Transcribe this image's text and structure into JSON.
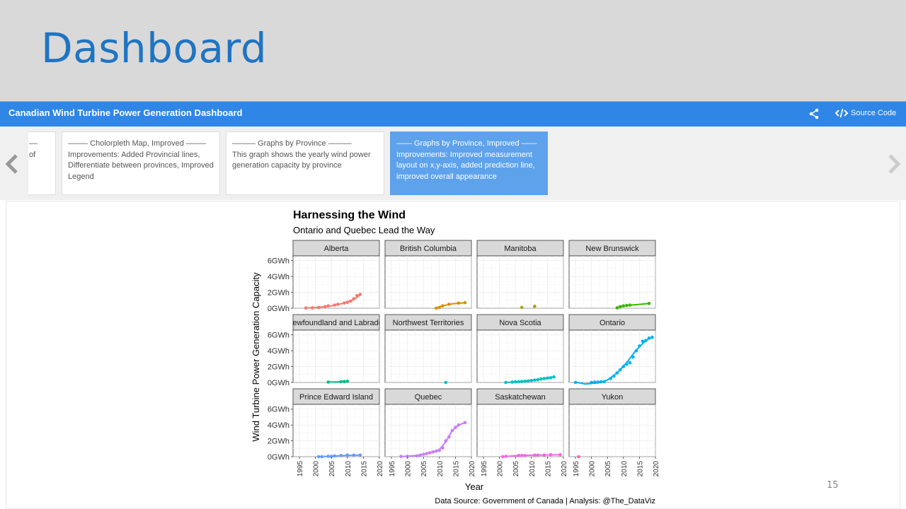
{
  "slide": {
    "title": "Dashboard",
    "page_number": "15"
  },
  "navbar": {
    "title": "Canadian Wind Turbine Power Generation Dashboard",
    "source_code_label": "Source Code",
    "share_icon": "share-icon",
    "code_icon": "code-icon"
  },
  "storyboard": {
    "cards": [
      {
        "title": "––",
        "text": "of"
      },
      {
        "title": "——– Cholorpleth Map, Improved ——–",
        "text": "Improvements: Added Provincial lines, Differentiate between provinces, Improved Legend"
      },
      {
        "title": "——— Graphs by Province ———",
        "text": "This graph shows the yearly wind power generation capacity by province"
      },
      {
        "title": "—— Graphs by Province, Improved ——",
        "text": "Improvements: Improved measurement layout on x,y-axis, added prediction line, improved overall appearance"
      }
    ]
  },
  "chart_data": {
    "type": "scatter",
    "title": "Harnessing the Wind",
    "subtitle": "Ontario and Quebec Lead the Way",
    "xlabel": "Year",
    "ylabel": "Wind Turbine Power Generation Capacity",
    "caption": "Data Source: Government of Canada | Analysis: @The_DataViz",
    "xlim": [
      1993,
      2020
    ],
    "ylim": [
      0,
      6.6
    ],
    "x_ticks": [
      "1995",
      "2000",
      "2005",
      "2010",
      "2015",
      "2020"
    ],
    "y_ticks": [
      "0GWh",
      "2GWh",
      "4GWh",
      "6GWh"
    ],
    "y_tick_values": [
      0,
      2,
      4,
      6
    ],
    "x_tick_values": [
      1995,
      2000,
      2005,
      2010,
      2015,
      2020
    ],
    "panels": [
      {
        "name": "Alberta",
        "color": "#f8766d",
        "x": [
          1997,
          1999,
          2001,
          2003,
          2004,
          2006,
          2007,
          2009,
          2010,
          2011,
          2012,
          2013,
          2014
        ],
        "y": [
          0.03,
          0.05,
          0.1,
          0.2,
          0.3,
          0.4,
          0.5,
          0.65,
          0.75,
          0.9,
          1.2,
          1.6,
          1.75
        ],
        "fit": [
          [
            1997,
            0.02
          ],
          [
            2001,
            0.1
          ],
          [
            2005,
            0.3
          ],
          [
            2009,
            0.65
          ],
          [
            2012,
            1.1
          ],
          [
            2014,
            1.7
          ]
        ]
      },
      {
        "name": "British Columbia",
        "color": "#d89000",
        "x": [
          2009,
          2010,
          2011,
          2013,
          2016,
          2018
        ],
        "y": [
          0.0,
          0.1,
          0.3,
          0.5,
          0.65,
          0.7
        ],
        "fit": [
          [
            2009,
            0.05
          ],
          [
            2011,
            0.3
          ],
          [
            2014,
            0.55
          ],
          [
            2018,
            0.7
          ]
        ]
      },
      {
        "name": "Manitoba",
        "color": "#a3a500",
        "x": [
          2007,
          2011
        ],
        "y": [
          0.1,
          0.25
        ],
        "fit": []
      },
      {
        "name": "New Brunswick",
        "color": "#39b600",
        "x": [
          2008,
          2009,
          2010,
          2011,
          2012,
          2018
        ],
        "y": [
          0.05,
          0.2,
          0.3,
          0.35,
          0.4,
          0.6
        ],
        "fit": [
          [
            2008,
            0.1
          ],
          [
            2011,
            0.35
          ],
          [
            2014,
            0.45
          ],
          [
            2018,
            0.6
          ]
        ]
      },
      {
        "name": "Newfoundland and Labrador",
        "color": "#00bf7d",
        "x": [
          2004,
          2008,
          2009,
          2010
        ],
        "y": [
          0.05,
          0.1,
          0.12,
          0.15
        ],
        "fit": [
          [
            2004,
            0.05
          ],
          [
            2007,
            0.08
          ],
          [
            2010,
            0.15
          ]
        ]
      },
      {
        "name": "Northwest Territories",
        "color": "#00bfc4",
        "x": [
          2012
        ],
        "y": [
          0.0
        ],
        "fit": []
      },
      {
        "name": "Nova Scotia",
        "color": "#00bfc4",
        "x": [
          2002,
          2004,
          2005,
          2006,
          2007,
          2008,
          2009,
          2010,
          2011,
          2012,
          2013,
          2014,
          2015,
          2016,
          2017
        ],
        "y": [
          0.0,
          0.05,
          0.08,
          0.1,
          0.12,
          0.15,
          0.2,
          0.25,
          0.3,
          0.35,
          0.45,
          0.5,
          0.55,
          0.6,
          0.7
        ],
        "fit": [
          [
            2002,
            0.0
          ],
          [
            2006,
            0.1
          ],
          [
            2010,
            0.25
          ],
          [
            2014,
            0.5
          ],
          [
            2017,
            0.7
          ]
        ]
      },
      {
        "name": "Ontario",
        "color": "#00b0f6",
        "x": [
          1995,
          2000,
          2001,
          2002,
          2003,
          2004,
          2006,
          2007,
          2008,
          2009,
          2010,
          2011,
          2012,
          2013,
          2014,
          2015,
          2016,
          2017,
          2018,
          2019
        ],
        "y": [
          0.0,
          0.0,
          0.05,
          0.05,
          0.08,
          0.1,
          0.5,
          0.8,
          1.2,
          1.6,
          2.0,
          2.3,
          2.5,
          3.2,
          4.0,
          4.6,
          5.2,
          5.3,
          5.6,
          5.7
        ],
        "fit": [
          [
            1995,
            0.05
          ],
          [
            1998,
            -0.2
          ],
          [
            2002,
            -0.05
          ],
          [
            2005,
            0.3
          ],
          [
            2008,
            1.2
          ],
          [
            2011,
            2.5
          ],
          [
            2014,
            4.1
          ],
          [
            2017,
            5.3
          ],
          [
            2019,
            5.7
          ]
        ]
      },
      {
        "name": "Prince Edward Island",
        "color": "#619cff",
        "x": [
          2001,
          2002,
          2004,
          2005,
          2006,
          2008,
          2010,
          2012,
          2014
        ],
        "y": [
          0.0,
          0.0,
          0.05,
          0.05,
          0.1,
          0.15,
          0.2,
          0.2,
          0.2
        ],
        "fit": [
          [
            2001,
            0.0
          ],
          [
            2005,
            0.05
          ],
          [
            2009,
            0.15
          ],
          [
            2014,
            0.2
          ]
        ]
      },
      {
        "name": "Quebec",
        "color": "#c77cff",
        "x": [
          1998,
          2000,
          2003,
          2004,
          2005,
          2006,
          2007,
          2008,
          2009,
          2010,
          2011,
          2012,
          2013,
          2014,
          2015,
          2016,
          2018
        ],
        "y": [
          0.03,
          0.05,
          0.1,
          0.2,
          0.3,
          0.4,
          0.5,
          0.6,
          0.7,
          0.8,
          1.1,
          2.0,
          2.5,
          3.3,
          3.7,
          4.0,
          4.3
        ],
        "fit": [
          [
            1998,
            0.0
          ],
          [
            2003,
            0.15
          ],
          [
            2007,
            0.45
          ],
          [
            2010,
            0.9
          ],
          [
            2012,
            1.9
          ],
          [
            2014,
            3.3
          ],
          [
            2016,
            4.0
          ],
          [
            2018,
            4.3
          ]
        ]
      },
      {
        "name": "Saskatchewan",
        "color": "#f564e3",
        "x": [
          2001,
          2002,
          2006,
          2007,
          2008,
          2011,
          2012,
          2014,
          2016,
          2019
        ],
        "y": [
          0.0,
          0.05,
          0.15,
          0.15,
          0.15,
          0.2,
          0.2,
          0.2,
          0.25,
          0.25
        ],
        "fit": [
          [
            2001,
            0.0
          ],
          [
            2006,
            0.15
          ],
          [
            2012,
            0.2
          ],
          [
            2019,
            0.25
          ]
        ]
      },
      {
        "name": "Yukon",
        "color": "#ff64b0",
        "x": [
          1996
        ],
        "y": [
          0.0
        ],
        "fit": []
      }
    ]
  }
}
